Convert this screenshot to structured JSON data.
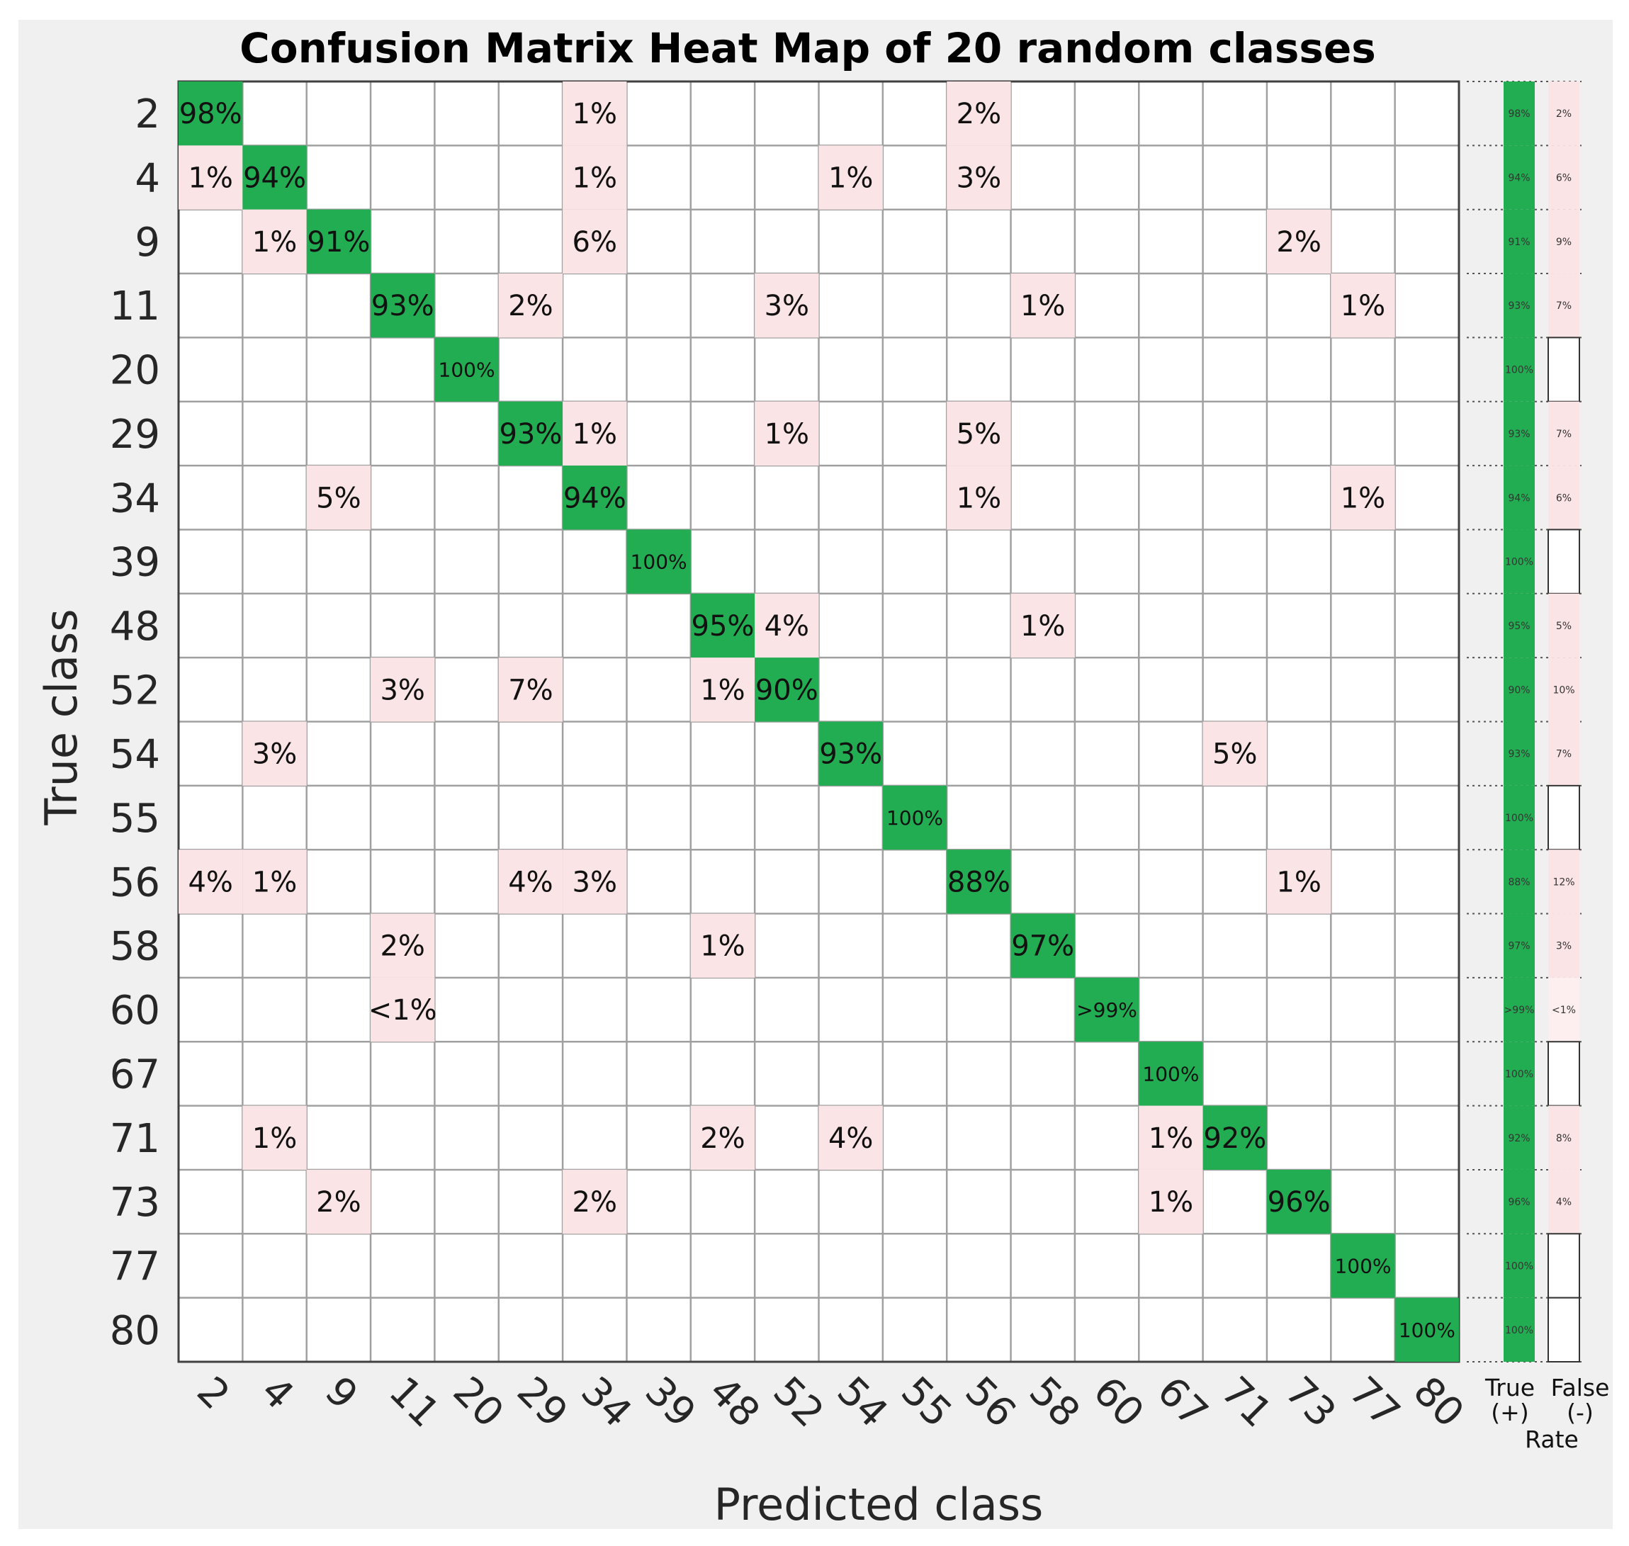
{
  "chart_data": {
    "type": "heatmap",
    "title": "Confusion Matrix Heat Map of 20 random classes",
    "xlabel": "Predicted class",
    "ylabel": "True class",
    "classes": [
      "2",
      "4",
      "9",
      "11",
      "20",
      "29",
      "34",
      "39",
      "48",
      "52",
      "54",
      "55",
      "56",
      "58",
      "60",
      "67",
      "71",
      "73",
      "77",
      "80"
    ],
    "cells": [
      {
        "r": 0,
        "c": 0,
        "label": "98%",
        "kind": "diag"
      },
      {
        "r": 0,
        "c": 6,
        "label": "1%",
        "kind": "off"
      },
      {
        "r": 0,
        "c": 12,
        "label": "2%",
        "kind": "off"
      },
      {
        "r": 1,
        "c": 0,
        "label": "1%",
        "kind": "off"
      },
      {
        "r": 1,
        "c": 1,
        "label": "94%",
        "kind": "diag"
      },
      {
        "r": 1,
        "c": 6,
        "label": "1%",
        "kind": "off"
      },
      {
        "r": 1,
        "c": 10,
        "label": "1%",
        "kind": "off"
      },
      {
        "r": 1,
        "c": 12,
        "label": "3%",
        "kind": "off"
      },
      {
        "r": 2,
        "c": 1,
        "label": "1%",
        "kind": "off"
      },
      {
        "r": 2,
        "c": 2,
        "label": "91%",
        "kind": "diag"
      },
      {
        "r": 2,
        "c": 6,
        "label": "6%",
        "kind": "off"
      },
      {
        "r": 2,
        "c": 17,
        "label": "2%",
        "kind": "off"
      },
      {
        "r": 3,
        "c": 3,
        "label": "93%",
        "kind": "diag"
      },
      {
        "r": 3,
        "c": 5,
        "label": "2%",
        "kind": "off"
      },
      {
        "r": 3,
        "c": 9,
        "label": "3%",
        "kind": "off"
      },
      {
        "r": 3,
        "c": 13,
        "label": "1%",
        "kind": "off"
      },
      {
        "r": 3,
        "c": 18,
        "label": "1%",
        "kind": "off"
      },
      {
        "r": 4,
        "c": 4,
        "label": "100%",
        "kind": "diag"
      },
      {
        "r": 5,
        "c": 5,
        "label": "93%",
        "kind": "diag"
      },
      {
        "r": 5,
        "c": 6,
        "label": "1%",
        "kind": "off"
      },
      {
        "r": 5,
        "c": 9,
        "label": "1%",
        "kind": "off"
      },
      {
        "r": 5,
        "c": 12,
        "label": "5%",
        "kind": "off"
      },
      {
        "r": 6,
        "c": 2,
        "label": "5%",
        "kind": "off"
      },
      {
        "r": 6,
        "c": 6,
        "label": "94%",
        "kind": "diag"
      },
      {
        "r": 6,
        "c": 12,
        "label": "1%",
        "kind": "off"
      },
      {
        "r": 6,
        "c": 18,
        "label": "1%",
        "kind": "off"
      },
      {
        "r": 7,
        "c": 7,
        "label": "100%",
        "kind": "diag"
      },
      {
        "r": 8,
        "c": 8,
        "label": "95%",
        "kind": "diag"
      },
      {
        "r": 8,
        "c": 9,
        "label": "4%",
        "kind": "off"
      },
      {
        "r": 8,
        "c": 13,
        "label": "1%",
        "kind": "off"
      },
      {
        "r": 9,
        "c": 3,
        "label": "3%",
        "kind": "off"
      },
      {
        "r": 9,
        "c": 5,
        "label": "7%",
        "kind": "off"
      },
      {
        "r": 9,
        "c": 8,
        "label": "1%",
        "kind": "off"
      },
      {
        "r": 9,
        "c": 9,
        "label": "90%",
        "kind": "diag"
      },
      {
        "r": 10,
        "c": 1,
        "label": "3%",
        "kind": "off"
      },
      {
        "r": 10,
        "c": 10,
        "label": "93%",
        "kind": "diag"
      },
      {
        "r": 10,
        "c": 16,
        "label": "5%",
        "kind": "off"
      },
      {
        "r": 11,
        "c": 11,
        "label": "100%",
        "kind": "diag"
      },
      {
        "r": 12,
        "c": 0,
        "label": "4%",
        "kind": "off"
      },
      {
        "r": 12,
        "c": 1,
        "label": "1%",
        "kind": "off"
      },
      {
        "r": 12,
        "c": 5,
        "label": "4%",
        "kind": "off"
      },
      {
        "r": 12,
        "c": 6,
        "label": "3%",
        "kind": "off"
      },
      {
        "r": 12,
        "c": 12,
        "label": "88%",
        "kind": "diag"
      },
      {
        "r": 12,
        "c": 17,
        "label": "1%",
        "kind": "off"
      },
      {
        "r": 13,
        "c": 3,
        "label": "2%",
        "kind": "off"
      },
      {
        "r": 13,
        "c": 8,
        "label": "1%",
        "kind": "off"
      },
      {
        "r": 13,
        "c": 13,
        "label": "97%",
        "kind": "diag"
      },
      {
        "r": 14,
        "c": 3,
        "label": "<1%",
        "kind": "off"
      },
      {
        "r": 14,
        "c": 14,
        "label": ">99%",
        "kind": "diag"
      },
      {
        "r": 15,
        "c": 15,
        "label": "100%",
        "kind": "diag"
      },
      {
        "r": 16,
        "c": 1,
        "label": "1%",
        "kind": "off"
      },
      {
        "r": 16,
        "c": 8,
        "label": "2%",
        "kind": "off"
      },
      {
        "r": 16,
        "c": 10,
        "label": "4%",
        "kind": "off"
      },
      {
        "r": 16,
        "c": 15,
        "label": "1%",
        "kind": "off"
      },
      {
        "r": 16,
        "c": 16,
        "label": "92%",
        "kind": "diag"
      },
      {
        "r": 17,
        "c": 2,
        "label": "2%",
        "kind": "off"
      },
      {
        "r": 17,
        "c": 6,
        "label": "2%",
        "kind": "off"
      },
      {
        "r": 17,
        "c": 15,
        "label": "1%",
        "kind": "off"
      },
      {
        "r": 17,
        "c": 17,
        "label": "96%",
        "kind": "diag"
      },
      {
        "r": 18,
        "c": 18,
        "label": "100%",
        "kind": "diag"
      },
      {
        "r": 19,
        "c": 19,
        "label": "100%",
        "kind": "diag"
      }
    ],
    "true_positive_rate": [
      "98%",
      "94%",
      "91%",
      "93%",
      "100%",
      "93%",
      "94%",
      "100%",
      "95%",
      "90%",
      "93%",
      "100%",
      "88%",
      "97%",
      ">99%",
      "100%",
      "92%",
      "96%",
      "100%",
      "100%"
    ],
    "false_negative_rate": [
      "2%",
      "6%",
      "9%",
      "7%",
      "",
      "7%",
      "6%",
      "",
      "5%",
      "10%",
      "7%",
      "",
      "12%",
      "3%",
      "<1%",
      "",
      "8%",
      "4%",
      "",
      ""
    ],
    "summary_header": {
      "tp_line1": "True",
      "tp_line2": "(+)",
      "fn_line1": "False",
      "fn_line2": "(-)",
      "shared": "Rate"
    },
    "colors": {
      "diag": "#23ad52",
      "off": "#fbe4e6",
      "off_light": "#fdeff0",
      "grid": "#a0a0a0",
      "frame": "#404040",
      "background": "#f0f0f0"
    }
  }
}
